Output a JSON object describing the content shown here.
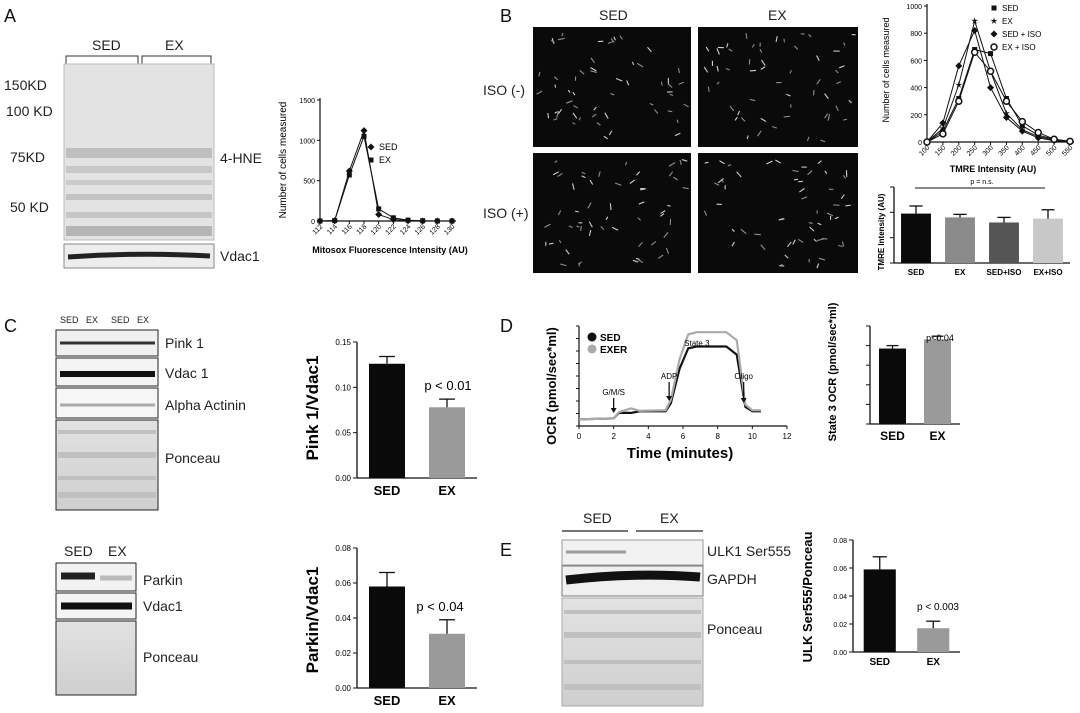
{
  "figure": {
    "panels": {
      "A": {
        "letter": "A",
        "blot": {
          "groups": [
            "SED",
            "EX"
          ],
          "markers": [
            "150KD",
            "100 KD",
            "75KD",
            "50 KD"
          ],
          "protein_labels": [
            "4-HNE",
            "Vdac1"
          ]
        }
      },
      "B": {
        "letter": "B",
        "columns": [
          "SED",
          "EX"
        ],
        "rows": [
          "ISO (-)",
          "ISO (+)"
        ]
      },
      "C": {
        "letter": "C",
        "blot_top": {
          "lanes": [
            "SED",
            "EX",
            "SED",
            "EX"
          ],
          "labels": [
            "Pink 1",
            "Vdac 1",
            "Alpha Actinin",
            "Ponceau"
          ]
        },
        "blot_bottom": {
          "lanes": [
            "SED",
            "EX"
          ],
          "labels": [
            "Parkin",
            "Vdac1",
            "Ponceau"
          ]
        }
      },
      "D": {
        "letter": "D"
      },
      "E": {
        "letter": "E",
        "blot": {
          "groups": [
            "SED",
            "EX"
          ],
          "labels": [
            "ULK1 Ser555",
            "GAPDH",
            "Ponceau"
          ]
        }
      }
    }
  },
  "chart_data": [
    {
      "id": "mitosox",
      "type": "line",
      "title": "",
      "xlabel": "Mitosox Fluorescence Intensity (AU)",
      "ylabel": "Number of cells measured",
      "categories": [
        "112",
        "114",
        "116",
        "118",
        "120",
        "122",
        "124",
        "126",
        "128",
        "130"
      ],
      "ylim": [
        0,
        1500
      ],
      "yticks": [
        "0",
        "500",
        "1000",
        "1500"
      ],
      "series": [
        {
          "name": "SED",
          "marker": "diamond",
          "values": [
            0,
            5,
            620,
            1120,
            80,
            18,
            4,
            0,
            0,
            0
          ]
        },
        {
          "name": "EX",
          "marker": "square",
          "values": [
            0,
            5,
            570,
            1050,
            150,
            40,
            10,
            3,
            0,
            0
          ]
        }
      ]
    },
    {
      "id": "tmre_hist",
      "type": "line",
      "xlabel": "TMRE Intensity (AU)",
      "ylabel": "Number of cells measured",
      "categories": [
        "100",
        "150",
        "200",
        "250",
        "300",
        "350",
        "400",
        "450",
        "500",
        "550"
      ],
      "ylim": [
        0,
        1000
      ],
      "yticks": [
        "0",
        "200",
        "400",
        "600",
        "800",
        "1000"
      ],
      "series": [
        {
          "name": "SED",
          "marker": "square",
          "values": [
            0,
            80,
            320,
            680,
            650,
            320,
            120,
            50,
            20,
            5
          ]
        },
        {
          "name": "EX",
          "marker": "star",
          "values": [
            0,
            100,
            420,
            890,
            520,
            210,
            90,
            40,
            15,
            5
          ]
        },
        {
          "name": "SED + ISO",
          "marker": "diamond",
          "values": [
            0,
            140,
            560,
            820,
            400,
            180,
            80,
            30,
            10,
            0
          ]
        },
        {
          "name": "EX + ISO",
          "marker": "circle",
          "values": [
            0,
            60,
            300,
            660,
            520,
            300,
            150,
            70,
            20,
            5
          ]
        }
      ]
    },
    {
      "id": "tmre_bar",
      "type": "bar",
      "ylabel": "TMRE Intensity (AU)",
      "annotation": "p = n.s.",
      "categories": [
        "SED",
        "EX",
        "SED+ISO",
        "EX+ISO"
      ],
      "values": [
        195,
        180,
        160,
        175
      ],
      "errors": [
        30,
        12,
        20,
        35
      ],
      "colors": [
        "#0a0a0a",
        "#8a8a8a",
        "#555555",
        "#c8c8c8"
      ],
      "ylim": [
        0,
        300
      ]
    },
    {
      "id": "pink1",
      "type": "bar",
      "ylabel": "Pink 1/Vdac1",
      "annotation": "p < 0.01",
      "categories": [
        "SED",
        "EX"
      ],
      "values": [
        0.126,
        0.078
      ],
      "errors": [
        0.008,
        0.009
      ],
      "colors": [
        "#0a0a0a",
        "#9a9a9a"
      ],
      "ylim": [
        0,
        0.15
      ],
      "yticks": [
        "0.00",
        "0.05",
        "0.10",
        "0.15"
      ]
    },
    {
      "id": "parkin",
      "type": "bar",
      "ylabel": "Parkin/Vdac1",
      "annotation": "p < 0.04",
      "categories": [
        "SED",
        "EX"
      ],
      "values": [
        0.058,
        0.031
      ],
      "errors": [
        0.008,
        0.008
      ],
      "colors": [
        "#0a0a0a",
        "#9a9a9a"
      ],
      "ylim": [
        0,
        0.08
      ],
      "yticks": [
        "0.00",
        "0.02",
        "0.04",
        "0.06",
        "0.08"
      ]
    },
    {
      "id": "ocr_trace",
      "type": "line",
      "xlabel": "Time (minutes)",
      "ylabel": "OCR (pmol/sec*ml)",
      "xlim": [
        0,
        12
      ],
      "xticks": [
        "0",
        "2",
        "4",
        "6",
        "8",
        "10",
        "12"
      ],
      "annotations": [
        "G/M/S",
        "ADP",
        "State 3",
        "Oligo"
      ],
      "series": [
        {
          "name": "SED",
          "color": "#111111",
          "x": [
            0,
            1,
            2,
            2.3,
            3,
            3.5,
            5,
            5.3,
            5.8,
            6.3,
            6.8,
            8.5,
            9.1,
            9.6,
            10,
            10.5
          ],
          "y": [
            28,
            30,
            32,
            55,
            55,
            62,
            62,
            96,
            240,
            326,
            334,
            334,
            300,
            80,
            62,
            62
          ]
        },
        {
          "name": "EXER",
          "color": "#aaaaaa",
          "x": [
            0,
            1,
            2,
            2.3,
            3,
            3.5,
            5,
            5.3,
            5.8,
            6.3,
            6.8,
            8.5,
            9.1,
            9.6,
            10,
            10.5
          ],
          "y": [
            28,
            30,
            32,
            58,
            74,
            64,
            66,
            110,
            280,
            385,
            394,
            394,
            360,
            90,
            66,
            66
          ]
        }
      ]
    },
    {
      "id": "state3",
      "type": "bar",
      "ylabel": "State 3 OCR (pmol/sec*ml)",
      "annotation": "p<0.04",
      "categories": [
        "SED",
        "EX"
      ],
      "values": [
        385,
        432
      ],
      "errors": [
        15,
        16
      ],
      "colors": [
        "#0a0a0a",
        "#9a9a9a"
      ],
      "ylim": [
        0,
        500
      ]
    },
    {
      "id": "ulk",
      "type": "bar",
      "ylabel": "ULK Ser555/Ponceau",
      "annotation": "p < 0.003",
      "categories": [
        "SED",
        "EX"
      ],
      "values": [
        0.059,
        0.017
      ],
      "errors": [
        0.009,
        0.005
      ],
      "colors": [
        "#0a0a0a",
        "#9a9a9a"
      ],
      "ylim": [
        0,
        0.08
      ],
      "yticks": [
        "0.00",
        "0.02",
        "0.04",
        "0.06",
        "0.08"
      ]
    }
  ]
}
